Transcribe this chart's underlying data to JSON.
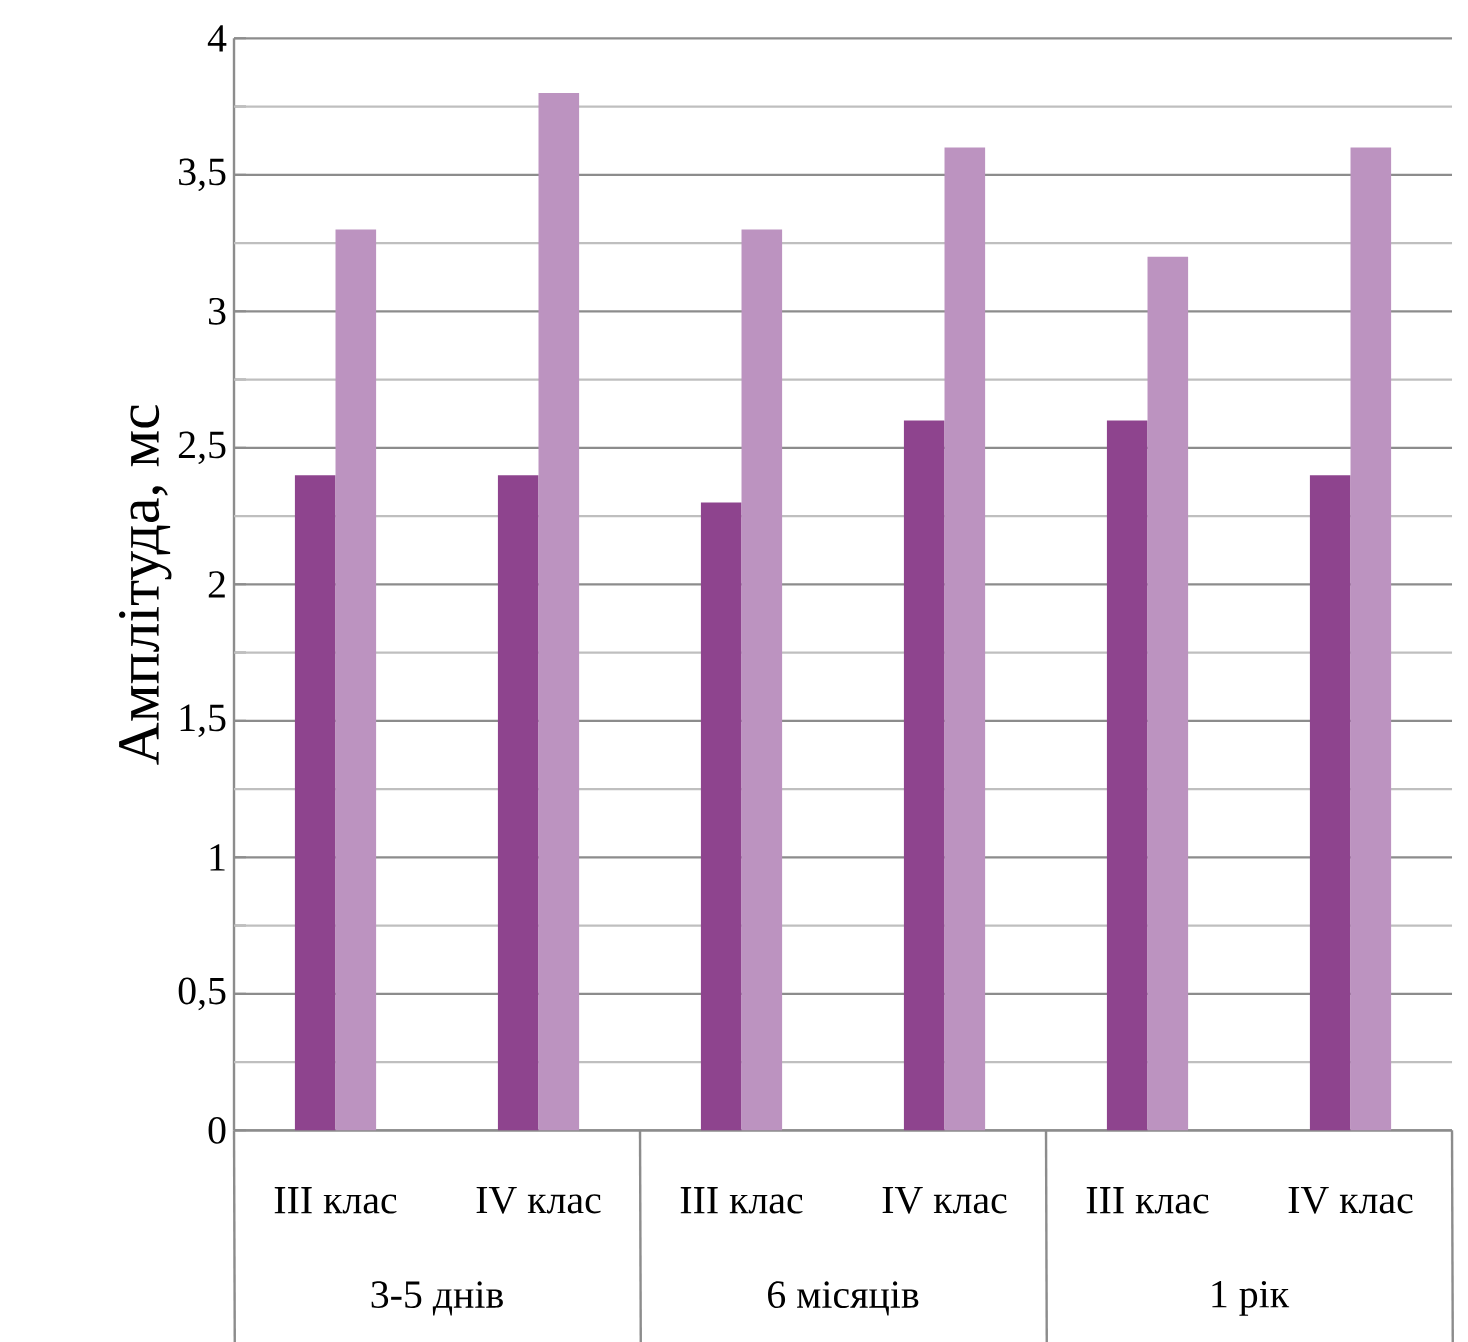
{
  "chart_data": {
    "type": "bar",
    "ylabel": "Амплітуда, мс",
    "categories": [
      "III клас",
      "IV клас",
      "III клас",
      "IV клас",
      "III клас",
      "IV клас"
    ],
    "series": [
      {
        "color": "#8e448e",
        "values": [
          2.4,
          2.4,
          2.3,
          2.6,
          2.6,
          2.4
        ]
      },
      {
        "color": "#bc93c0",
        "values": [
          3.3,
          3.8,
          3.3,
          3.6,
          3.2,
          3.6
        ]
      }
    ],
    "ylim": [
      0,
      4
    ],
    "yticks": [
      0,
      {
        "value": 0.25,
        "label": null
      },
      {
        "value": 0.5,
        "label": "0,5"
      },
      {
        "value": 0.75,
        "label": null
      },
      1,
      {
        "value": 1.25,
        "label": null
      },
      {
        "value": 1.5,
        "label": "1,5"
      },
      {
        "value": 1.75,
        "label": null
      },
      2,
      {
        "value": 2.25,
        "label": null
      },
      {
        "value": 2.5,
        "label": "2,5"
      },
      {
        "value": 2.75,
        "label": null
      },
      3,
      {
        "value": 3.25,
        "label": null
      },
      {
        "value": 3.5,
        "label": "3,5"
      },
      {
        "value": 3.75,
        "label": null
      },
      4
    ],
    "grid": "y",
    "annotations": [
      "3-5 днів",
      "6 місяців",
      "1 рік"
    ]
  }
}
